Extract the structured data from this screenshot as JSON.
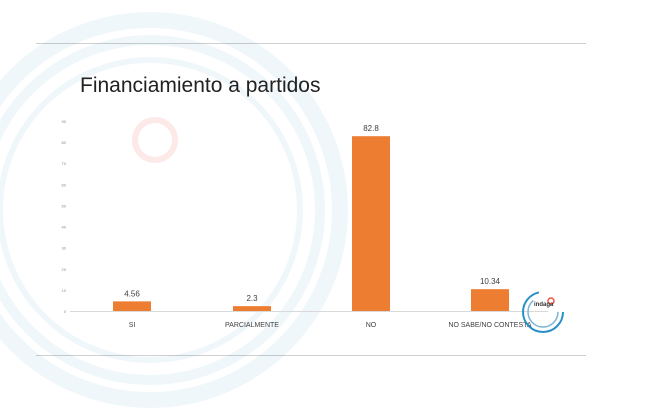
{
  "chart_data": {
    "type": "bar",
    "title": "Financiamiento a partidos",
    "categories": [
      "SI",
      "PARCIALMENTE",
      "NO",
      "NO SABE/NO CONTESTA"
    ],
    "values": [
      4.56,
      2.3,
      82.8,
      10.34
    ],
    "data_labels": [
      "4.56",
      "2.3",
      "82.8",
      "10.34"
    ],
    "ylim": [
      0,
      90
    ],
    "yticks": [
      "0",
      "10",
      "20",
      "30",
      "40",
      "50",
      "60",
      "70",
      "80",
      "90"
    ],
    "xlabel": "",
    "ylabel": "",
    "grid": false,
    "legend": "none",
    "bar_color": "#ED7D31"
  },
  "branding": {
    "logo_text": "indaga",
    "ring_color": "#2a8fc6",
    "accent_color": "#f04e37"
  }
}
